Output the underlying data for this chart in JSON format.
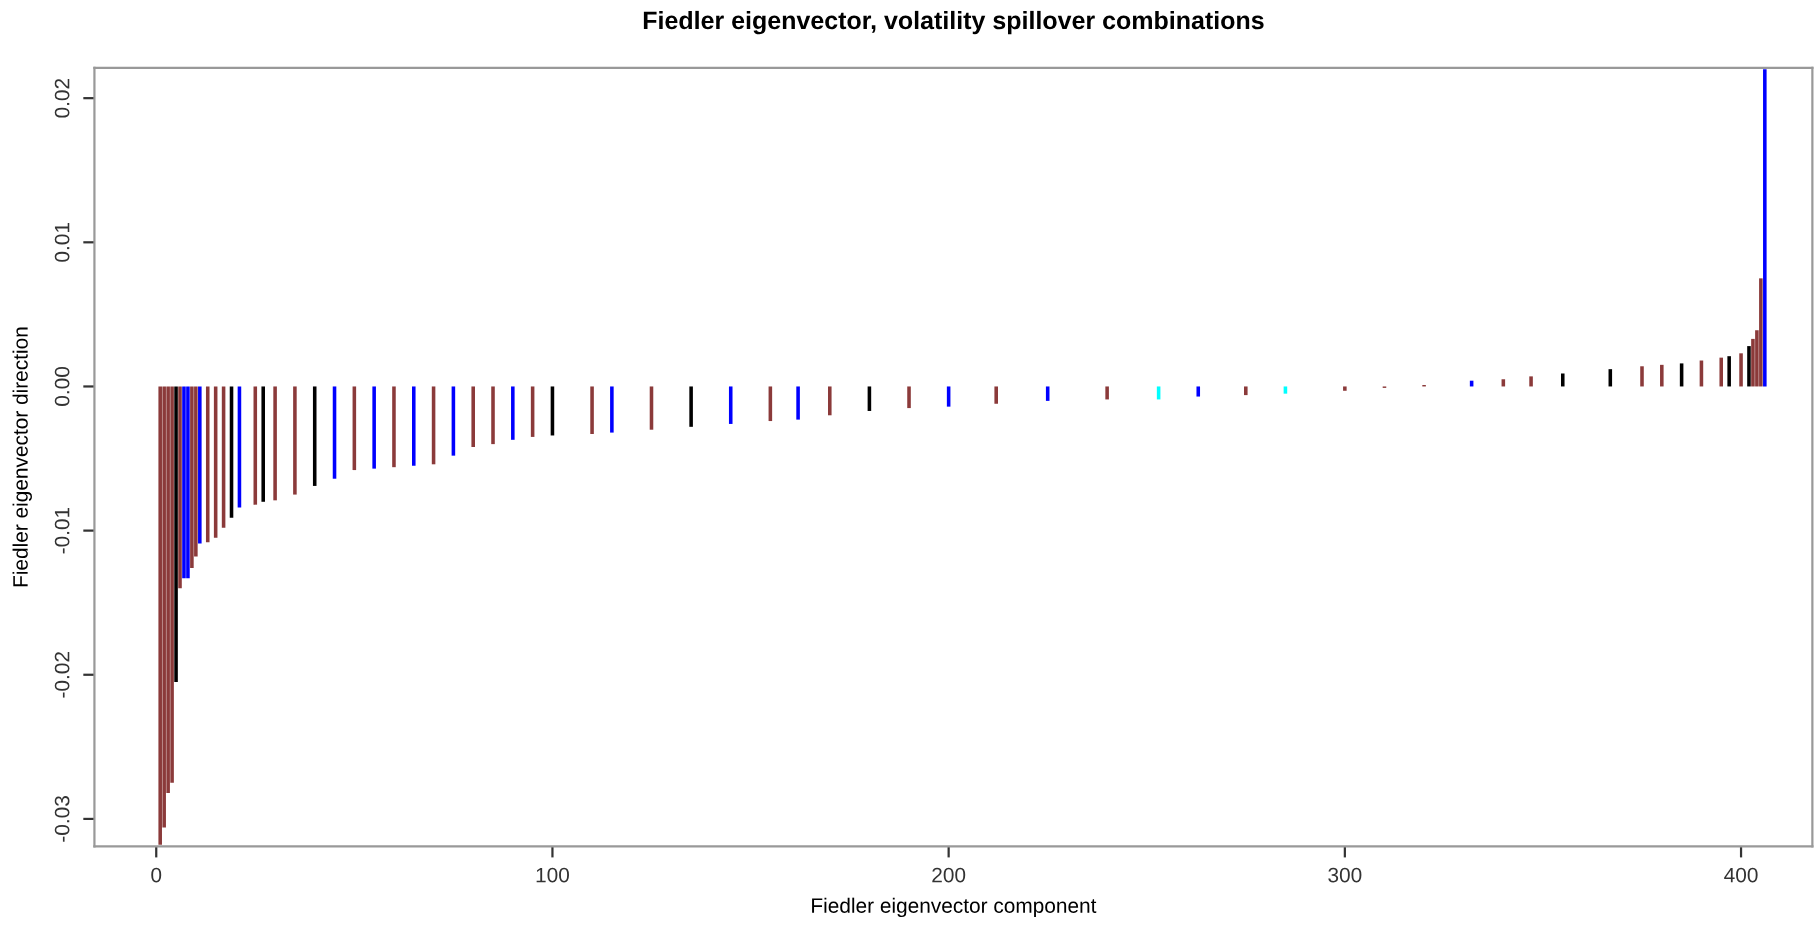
{
  "chart_data": {
    "type": "bar",
    "title": "Fiedler eigenvector, volatility spillover combinations",
    "xlabel": "Fiedler eigenvector component",
    "ylabel": "Fiedler eigenvector direction",
    "x": [
      1,
      2,
      3,
      4,
      5,
      6,
      7,
      8,
      9,
      10,
      11,
      13,
      15,
      17,
      19,
      21,
      25,
      27,
      30,
      35,
      40,
      45,
      50,
      55,
      60,
      65,
      70,
      75,
      80,
      85,
      90,
      95,
      100,
      110,
      115,
      125,
      135,
      145,
      155,
      162,
      170,
      180,
      190,
      200,
      212,
      225,
      240,
      253,
      263,
      275,
      285,
      300,
      310,
      320,
      332,
      340,
      347,
      355,
      367,
      375,
      380,
      385,
      390,
      395,
      397,
      400,
      402,
      403,
      404,
      405,
      406
    ],
    "values": [
      -0.0318,
      -0.0306,
      -0.0282,
      -0.0275,
      -0.0205,
      -0.014,
      -0.0133,
      -0.0133,
      -0.0126,
      -0.0118,
      -0.0109,
      -0.0108,
      -0.0105,
      -0.0098,
      -0.0091,
      -0.0084,
      -0.0082,
      -0.008,
      -0.0079,
      -0.0075,
      -0.0069,
      -0.0064,
      -0.0058,
      -0.0057,
      -0.0056,
      -0.0055,
      -0.0054,
      -0.0048,
      -0.0042,
      -0.004,
      -0.0037,
      -0.0035,
      -0.0034,
      -0.0033,
      -0.0032,
      -0.003,
      -0.0028,
      -0.0026,
      -0.0024,
      -0.0023,
      -0.002,
      -0.0017,
      -0.0015,
      -0.0014,
      -0.0012,
      -0.001,
      -0.0009,
      -0.0009,
      -0.0007,
      -0.0006,
      -0.0005,
      -0.0003,
      -0.0001,
      0.0001,
      0.0004,
      0.0005,
      0.0007,
      0.0009,
      0.0012,
      0.0014,
      0.0015,
      0.0016,
      0.0018,
      0.002,
      0.0021,
      0.0023,
      0.0028,
      0.0033,
      0.0039,
      0.0075,
      0.022
    ],
    "colors": [
      "#8b3a3a",
      "#8b3a3a",
      "#8b3a3a",
      "#8b3a3a",
      "#000000",
      "#8b3a3a",
      "#0000ff",
      "#0000ff",
      "#8b3a3a",
      "#8b3a3a",
      "#0000ff",
      "#8b3a3a",
      "#8b3a3a",
      "#8b3a3a",
      "#000000",
      "#0000ff",
      "#8b3a3a",
      "#000000",
      "#8b3a3a",
      "#8b3a3a",
      "#000000",
      "#0000ff",
      "#8b3a3a",
      "#0000ff",
      "#8b3a3a",
      "#0000ff",
      "#8b3a3a",
      "#0000ff",
      "#8b3a3a",
      "#8b3a3a",
      "#0000ff",
      "#8b3a3a",
      "#000000",
      "#8b3a3a",
      "#0000ff",
      "#8b3a3a",
      "#000000",
      "#0000ff",
      "#8b3a3a",
      "#0000ff",
      "#8b3a3a",
      "#000000",
      "#8b3a3a",
      "#0000ff",
      "#8b3a3a",
      "#0000ff",
      "#8b3a3a",
      "#00ffff",
      "#0000ff",
      "#8b3a3a",
      "#00ffff",
      "#8b3a3a",
      "#8b3a3a",
      "#8b3a3a",
      "#0000ff",
      "#8b3a3a",
      "#8b3a3a",
      "#000000",
      "#000000",
      "#8b3a3a",
      "#8b3a3a",
      "#000000",
      "#8b3a3a",
      "#8b3a3a",
      "#000000",
      "#8b3a3a",
      "#000000",
      "#8b3a3a",
      "#8b3a3a",
      "#8b3a3a",
      "#0000ff"
    ],
    "xlim": [
      -15.6,
      418
    ],
    "ylim": [
      -0.0319,
      0.0221
    ],
    "xticks": [
      0,
      100,
      200,
      300,
      400
    ],
    "yticks": [
      {
        "value": -0.03,
        "label": "-0.03"
      },
      {
        "value": -0.02,
        "label": "-0.02"
      },
      {
        "value": -0.01,
        "label": "-0.01"
      },
      {
        "value": 0,
        "label": "0.00"
      },
      {
        "value": 0.01,
        "label": "0.01"
      },
      {
        "value": 0.02,
        "label": "0.02"
      }
    ]
  }
}
